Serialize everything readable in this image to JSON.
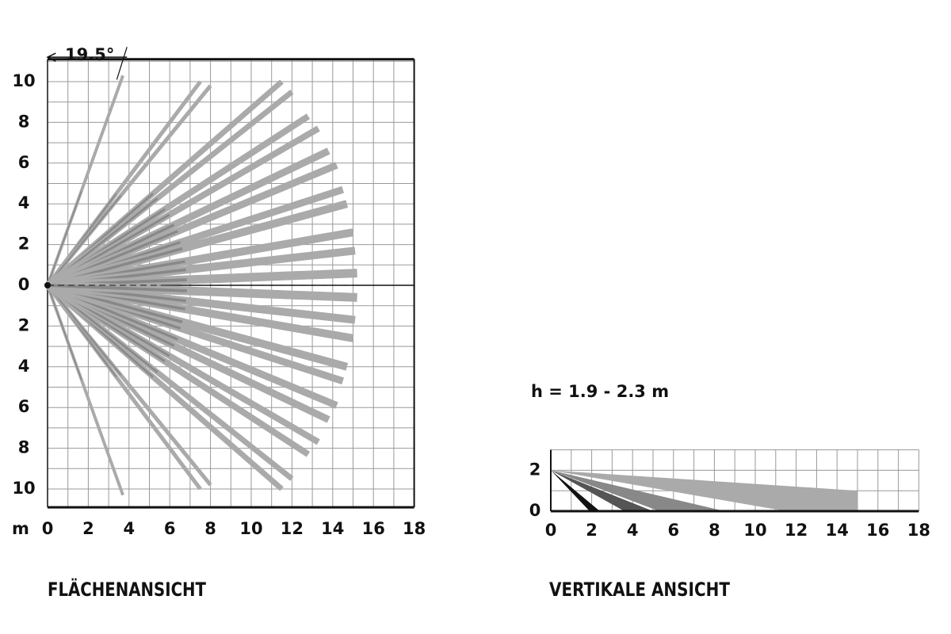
{
  "top_view": {
    "angle": "19.5°",
    "unit": "m",
    "y_tick_labels": [
      "10",
      "8",
      "6",
      "4",
      "2",
      "0",
      "2",
      "4",
      "6",
      "8",
      "10"
    ],
    "x_tick_labels": [
      "0",
      "2",
      "4",
      "6",
      "8",
      "10",
      "12",
      "14",
      "16",
      "18"
    ],
    "caption": "FLÄCHENANSICHT"
  },
  "side_view": {
    "height": "h = 1.9 - 2.3 m",
    "y_tick_labels": [
      "2",
      "0"
    ],
    "x_tick_labels": [
      "0",
      "2",
      "4",
      "6",
      "8",
      "10",
      "12",
      "14",
      "16",
      "18"
    ],
    "caption": "VERTIKALE ANSICHT"
  }
}
